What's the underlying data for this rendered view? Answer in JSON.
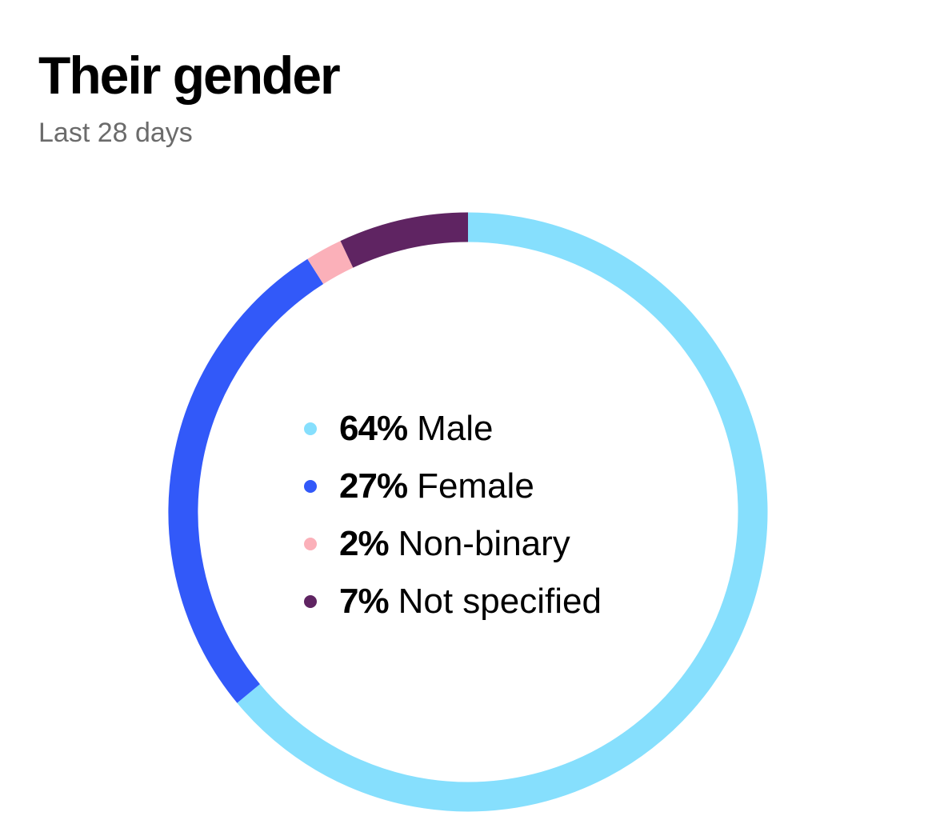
{
  "header": {
    "title": "Their gender",
    "subtitle": "Last 28 days"
  },
  "chart_data": {
    "type": "pie",
    "subtype": "donut",
    "title": "Their gender",
    "subtitle": "Last 28 days",
    "slices": [
      {
        "label": "Male",
        "value": 64,
        "display": "64%",
        "color": "#86DFFD"
      },
      {
        "label": "Female",
        "value": 27,
        "display": "27%",
        "color": "#3259F9"
      },
      {
        "label": "Non-binary",
        "value": 2,
        "display": "2%",
        "color": "#FBB0B9"
      },
      {
        "label": "Not specified",
        "value": 7,
        "display": "7%",
        "color": "#5F2462"
      }
    ]
  }
}
